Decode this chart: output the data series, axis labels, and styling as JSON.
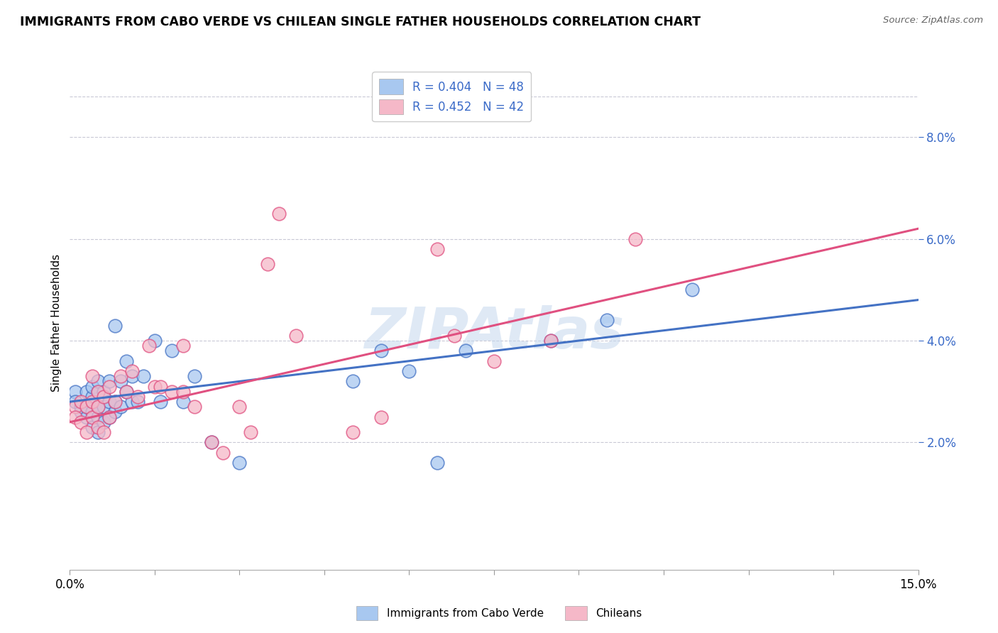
{
  "title": "IMMIGRANTS FROM CABO VERDE VS CHILEAN SINGLE FATHER HOUSEHOLDS CORRELATION CHART",
  "source": "Source: ZipAtlas.com",
  "ylabel": "Single Father Households",
  "legend_r1": "R = 0.404",
  "legend_n1": "N = 48",
  "legend_r2": "R = 0.452",
  "legend_n2": "N = 42",
  "color_blue": "#A8C8F0",
  "color_pink": "#F5B8C8",
  "line_blue": "#4472C4",
  "line_pink": "#E05080",
  "trendline_blue": "#4472C4",
  "trendline_pink": "#E05080",
  "watermark": "ZIPAtlas",
  "x_min": 0.0,
  "x_max": 0.15,
  "y_min": -0.005,
  "y_max": 0.092,
  "y_ticks": [
    0.02,
    0.04,
    0.06,
    0.08
  ],
  "y_tick_labels": [
    "2.0%",
    "4.0%",
    "6.0%",
    "8.0%"
  ],
  "x_ticks": [
    0.0,
    0.015,
    0.03,
    0.045,
    0.06,
    0.075,
    0.09,
    0.105,
    0.12,
    0.135,
    0.15
  ],
  "cabo_verde_points": [
    [
      0.001,
      0.03
    ],
    [
      0.001,
      0.028
    ],
    [
      0.002,
      0.027
    ],
    [
      0.002,
      0.026
    ],
    [
      0.003,
      0.025
    ],
    [
      0.003,
      0.027
    ],
    [
      0.003,
      0.03
    ],
    [
      0.004,
      0.023
    ],
    [
      0.004,
      0.026
    ],
    [
      0.004,
      0.029
    ],
    [
      0.004,
      0.031
    ],
    [
      0.005,
      0.022
    ],
    [
      0.005,
      0.025
    ],
    [
      0.005,
      0.027
    ],
    [
      0.005,
      0.03
    ],
    [
      0.005,
      0.032
    ],
    [
      0.006,
      0.024
    ],
    [
      0.006,
      0.027
    ],
    [
      0.006,
      0.03
    ],
    [
      0.007,
      0.025
    ],
    [
      0.007,
      0.028
    ],
    [
      0.007,
      0.032
    ],
    [
      0.008,
      0.026
    ],
    [
      0.008,
      0.028
    ],
    [
      0.008,
      0.043
    ],
    [
      0.009,
      0.027
    ],
    [
      0.009,
      0.032
    ],
    [
      0.01,
      0.03
    ],
    [
      0.01,
      0.036
    ],
    [
      0.011,
      0.028
    ],
    [
      0.011,
      0.033
    ],
    [
      0.012,
      0.028
    ],
    [
      0.013,
      0.033
    ],
    [
      0.015,
      0.04
    ],
    [
      0.016,
      0.028
    ],
    [
      0.018,
      0.038
    ],
    [
      0.02,
      0.028
    ],
    [
      0.022,
      0.033
    ],
    [
      0.025,
      0.02
    ],
    [
      0.03,
      0.016
    ],
    [
      0.05,
      0.032
    ],
    [
      0.055,
      0.038
    ],
    [
      0.06,
      0.034
    ],
    [
      0.065,
      0.016
    ],
    [
      0.07,
      0.038
    ],
    [
      0.085,
      0.04
    ],
    [
      0.095,
      0.044
    ],
    [
      0.11,
      0.05
    ]
  ],
  "chilean_points": [
    [
      0.001,
      0.027
    ],
    [
      0.001,
      0.025
    ],
    [
      0.002,
      0.024
    ],
    [
      0.002,
      0.028
    ],
    [
      0.003,
      0.022
    ],
    [
      0.003,
      0.027
    ],
    [
      0.004,
      0.025
    ],
    [
      0.004,
      0.028
    ],
    [
      0.004,
      0.033
    ],
    [
      0.005,
      0.023
    ],
    [
      0.005,
      0.027
    ],
    [
      0.005,
      0.03
    ],
    [
      0.006,
      0.022
    ],
    [
      0.006,
      0.029
    ],
    [
      0.007,
      0.025
    ],
    [
      0.007,
      0.031
    ],
    [
      0.008,
      0.028
    ],
    [
      0.009,
      0.033
    ],
    [
      0.01,
      0.03
    ],
    [
      0.011,
      0.034
    ],
    [
      0.012,
      0.029
    ],
    [
      0.014,
      0.039
    ],
    [
      0.015,
      0.031
    ],
    [
      0.016,
      0.031
    ],
    [
      0.018,
      0.03
    ],
    [
      0.02,
      0.03
    ],
    [
      0.02,
      0.039
    ],
    [
      0.022,
      0.027
    ],
    [
      0.025,
      0.02
    ],
    [
      0.027,
      0.018
    ],
    [
      0.03,
      0.027
    ],
    [
      0.032,
      0.022
    ],
    [
      0.035,
      0.055
    ],
    [
      0.037,
      0.065
    ],
    [
      0.04,
      0.041
    ],
    [
      0.05,
      0.022
    ],
    [
      0.055,
      0.025
    ],
    [
      0.065,
      0.058
    ],
    [
      0.068,
      0.041
    ],
    [
      0.075,
      0.036
    ],
    [
      0.085,
      0.04
    ],
    [
      0.1,
      0.06
    ]
  ],
  "cabo_verde_trendline": [
    [
      0.0,
      0.028
    ],
    [
      0.15,
      0.048
    ]
  ],
  "chilean_trendline": [
    [
      0.0,
      0.024
    ],
    [
      0.15,
      0.062
    ]
  ]
}
